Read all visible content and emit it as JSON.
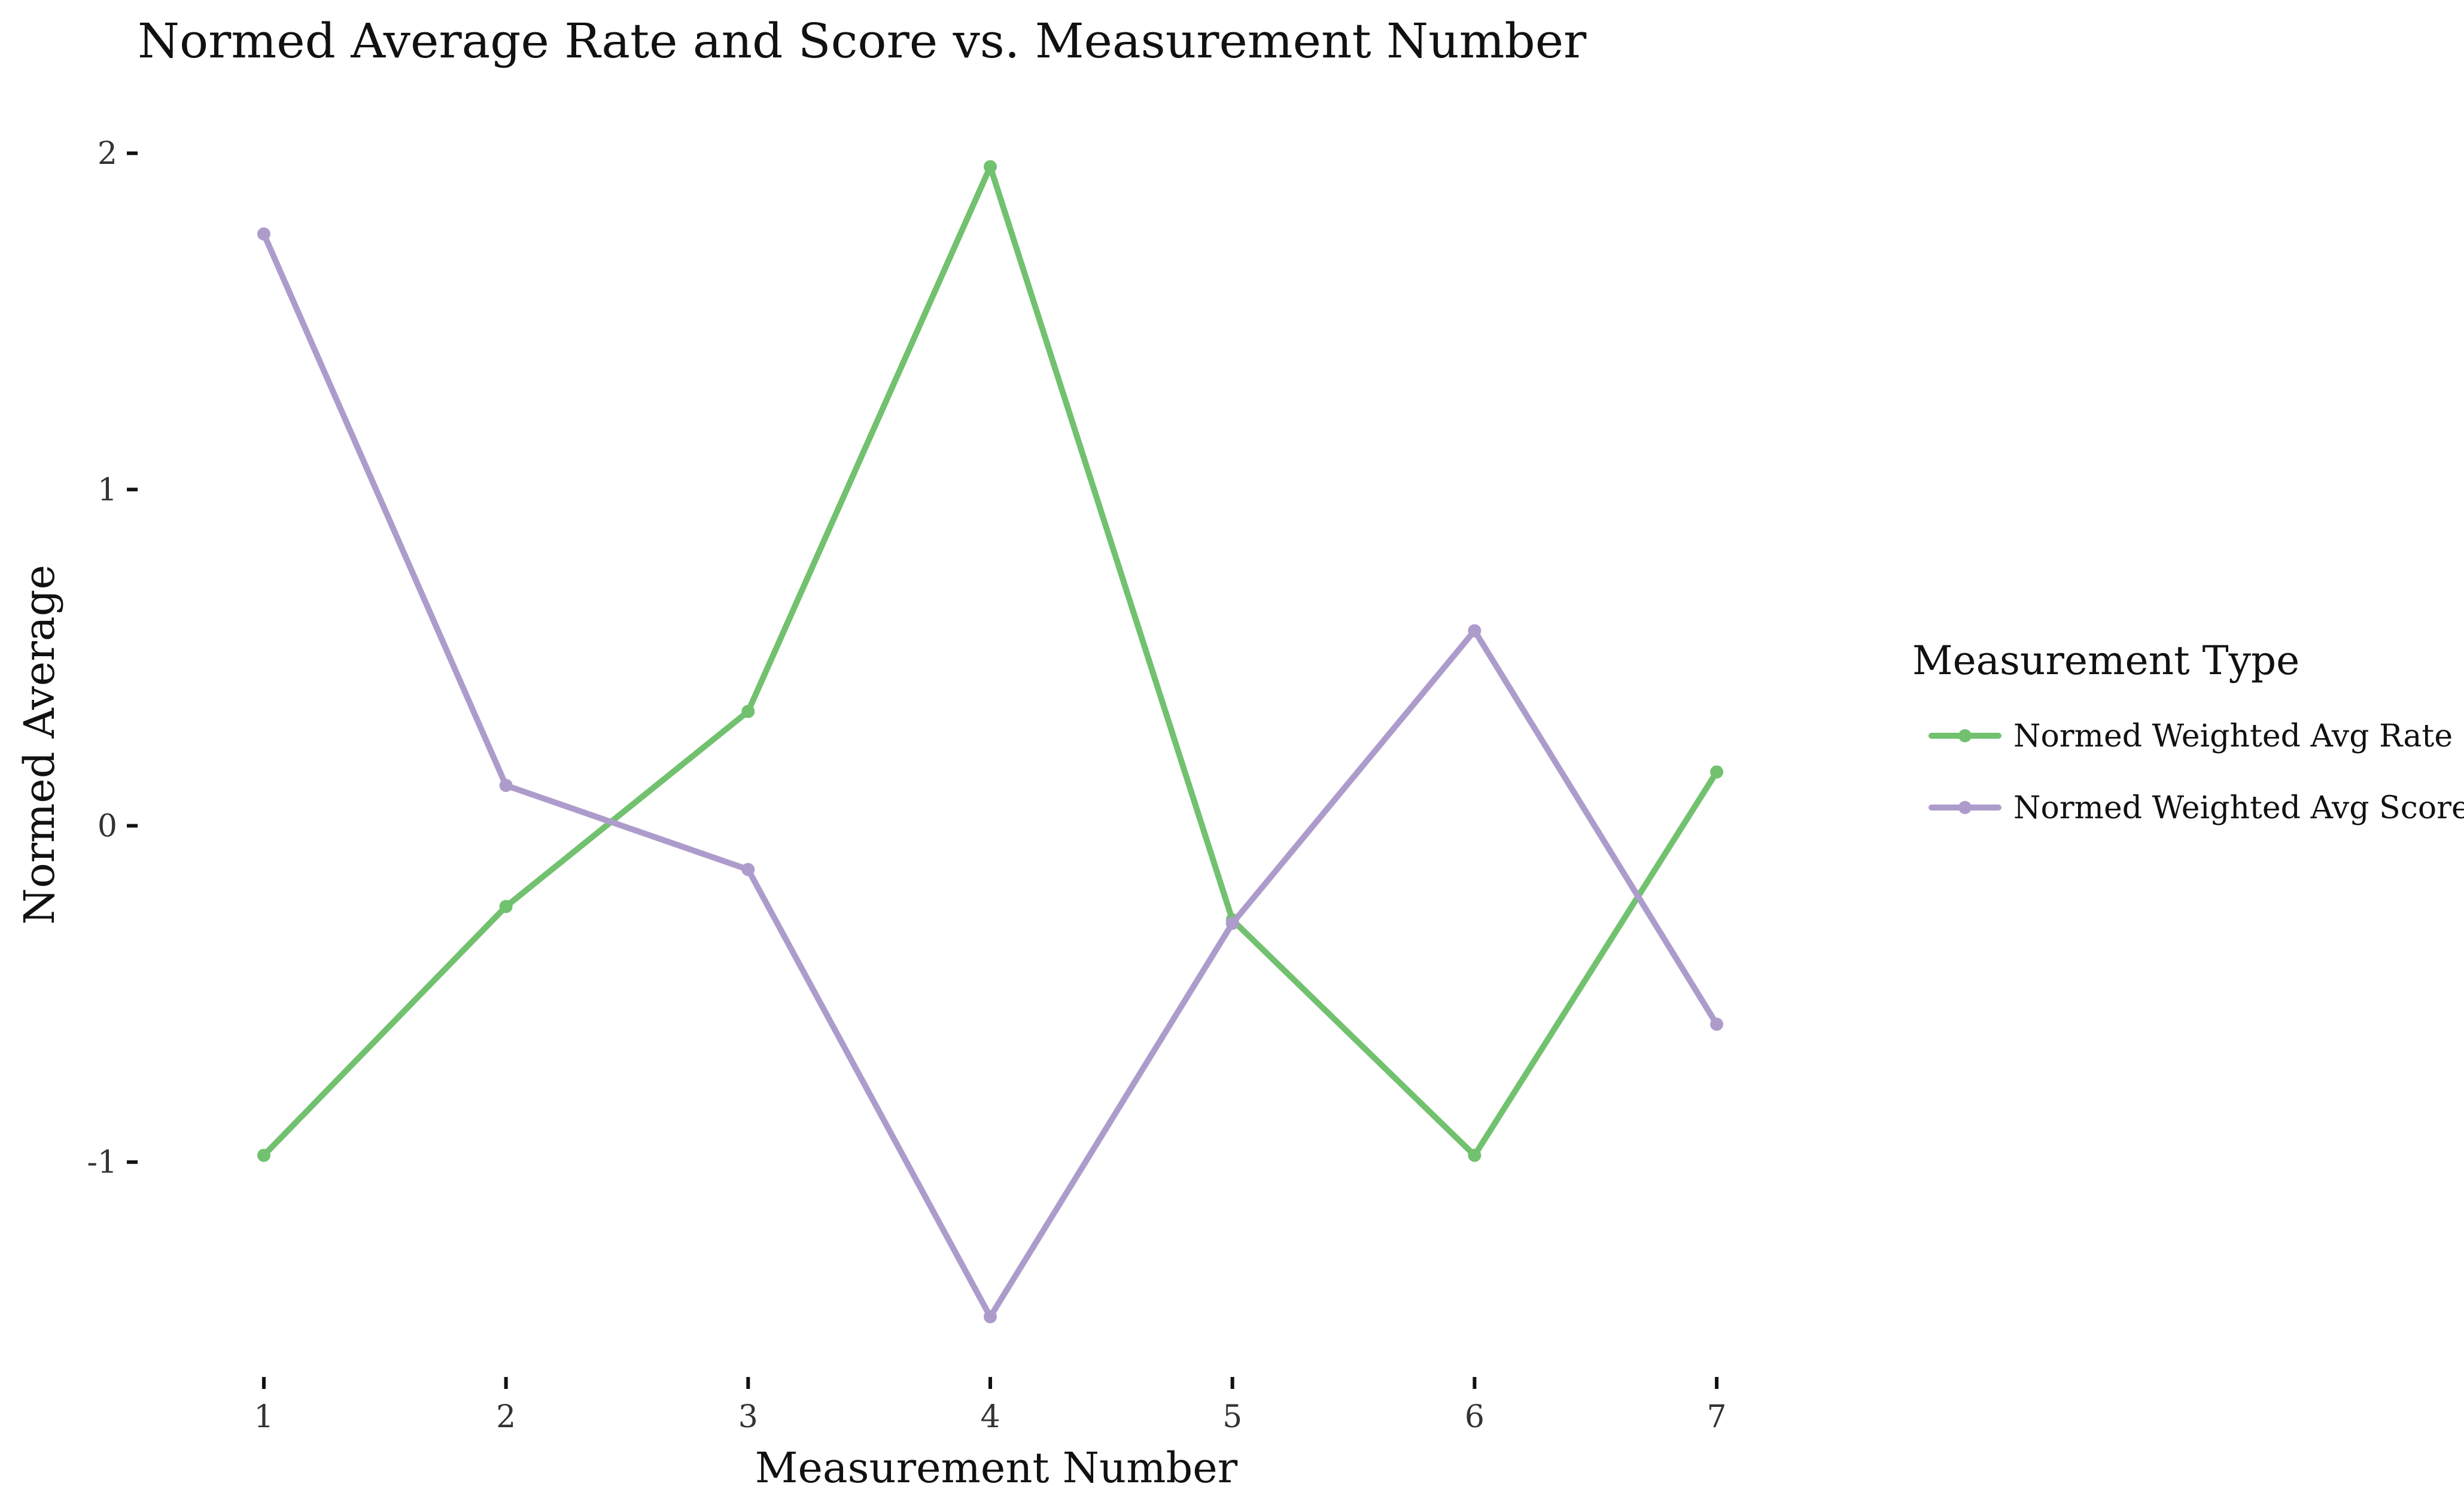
{
  "chart_data": {
    "type": "line",
    "title": "Normed Average Rate and Score vs. Measurement Number",
    "xlabel": "Measurement Number",
    "ylabel": "Normed Average",
    "x": [
      1,
      2,
      3,
      4,
      5,
      6,
      7
    ],
    "x_ticks": [
      "1",
      "2",
      "3",
      "4",
      "5",
      "6",
      "7"
    ],
    "y_ticks": [
      {
        "value": 2,
        "label": "2"
      },
      {
        "value": 1,
        "label": "1"
      },
      {
        "value": 0,
        "label": "0"
      },
      {
        "value": -1,
        "label": "-1"
      }
    ],
    "xlim": [
      0.8,
      7.2
    ],
    "ylim": [
      -1.6,
      2.1
    ],
    "grid": false,
    "legend": {
      "title": "Measurement Type",
      "placement": "right"
    },
    "series": [
      {
        "name": "Normed Weighted Avg Rate",
        "color": "#72c16f",
        "values": [
          -0.98,
          -0.24,
          0.34,
          1.96,
          -0.28,
          -0.98,
          0.16
        ]
      },
      {
        "name": "Normed Weighted Avg Score",
        "color": "#ad9ccb",
        "values": [
          1.76,
          0.12,
          -0.13,
          -1.46,
          -0.29,
          0.58,
          -0.59
        ]
      }
    ]
  }
}
